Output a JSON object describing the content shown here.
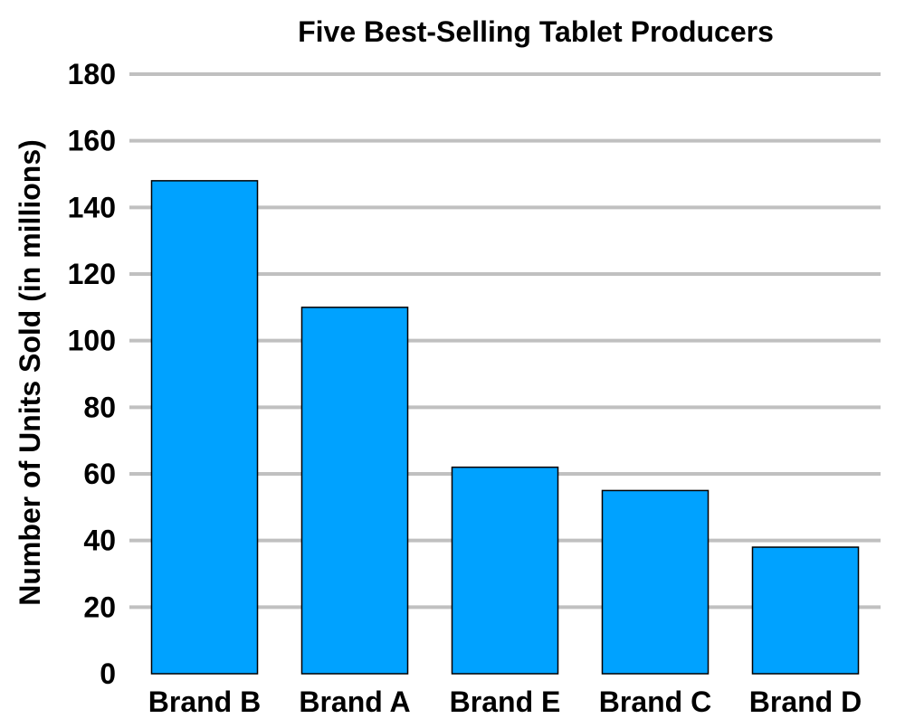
{
  "chart_data": {
    "type": "bar",
    "title": "Five Best-Selling Tablet Producers",
    "xlabel": "",
    "ylabel": "Number of Units Sold (in millions)",
    "categories": [
      "Brand B",
      "Brand A",
      "Brand E",
      "Brand C",
      "Brand D"
    ],
    "values": [
      148,
      110,
      62,
      55,
      38
    ],
    "ylim": [
      0,
      180
    ],
    "yticks": [
      "0",
      "20",
      "40",
      "60",
      "80",
      "100",
      "120",
      "140",
      "160",
      "180"
    ],
    "grid": true,
    "legend": "none",
    "bar_color": "#00a2ff",
    "grid_color": "#c0c0c0"
  }
}
